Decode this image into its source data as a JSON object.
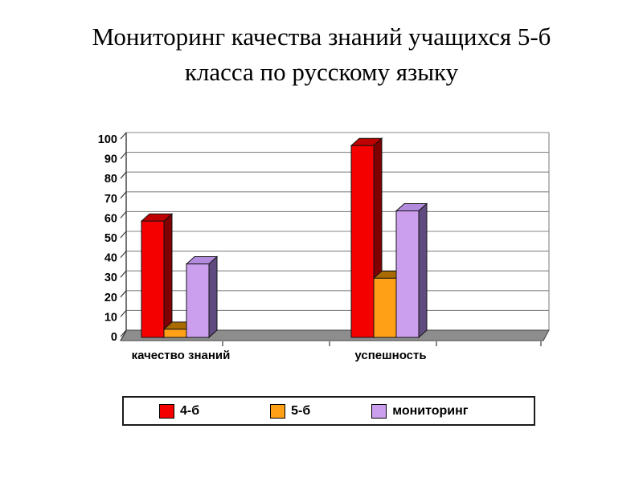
{
  "slide": {
    "title_line1": "Мониторинг качества знаний учащихся 5-б",
    "title_line2": "класса по русскому языку"
  },
  "chart_data": {
    "type": "bar",
    "style": "3d-column",
    "title": "Мониторинг качества знаний учащихся 5-б класса по русскому языку",
    "categories": [
      "качество знаний",
      "успешность"
    ],
    "series": [
      {
        "name": "4-б",
        "values": [
          57,
          94
        ],
        "color": "#F40000",
        "color_top": "#BE0000",
        "color_side": "#7E0002"
      },
      {
        "name": "5-б",
        "values": [
          4,
          29
        ],
        "color": "#FFA016",
        "color_top": "#A96A00",
        "color_side": "#8F5A00"
      },
      {
        "name": "мониторинг",
        "values": [
          36,
          62
        ],
        "color": "#CC9FEE",
        "color_top": "#B28BDD",
        "color_side": "#5F4B80"
      }
    ],
    "xlabel": "",
    "ylabel": "",
    "ylim": [
      0,
      100
    ],
    "ytick_step": 10,
    "grid": true,
    "legend_position": "bottom",
    "wall_color": "#ffffff",
    "floor_color": "#8D8D8D",
    "gridline_color": "#858585"
  }
}
